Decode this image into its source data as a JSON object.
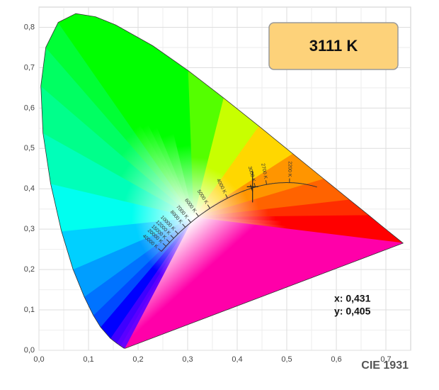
{
  "chart_data": {
    "type": "chromaticity",
    "title": "CIE 1931",
    "xlim": [
      0,
      0.75
    ],
    "ylim": [
      0,
      0.85
    ],
    "xticks": [
      {
        "value": 0,
        "label": "0,0"
      },
      {
        "value": 0.1,
        "label": "0,1"
      },
      {
        "value": 0.2,
        "label": "0,2"
      },
      {
        "value": 0.3,
        "label": "0,3"
      },
      {
        "value": 0.4,
        "label": "0,4"
      },
      {
        "value": 0.5,
        "label": "0,5"
      },
      {
        "value": 0.6,
        "label": "0,6"
      },
      {
        "value": 0.7,
        "label": "0,7"
      }
    ],
    "yticks": [
      {
        "value": 0,
        "label": "0,0"
      },
      {
        "value": 0.1,
        "label": "0,1"
      },
      {
        "value": 0.2,
        "label": "0,2"
      },
      {
        "value": 0.3,
        "label": "0,3"
      },
      {
        "value": 0.4,
        "label": "0,4"
      },
      {
        "value": 0.5,
        "label": "0,5"
      },
      {
        "value": 0.6,
        "label": "0,6"
      },
      {
        "value": 0.7,
        "label": "0,7"
      },
      {
        "value": 0.8,
        "label": "0,8"
      }
    ],
    "grid": true,
    "cct": {
      "value": 3111,
      "label": "3111 K"
    },
    "point": {
      "x": 0.431,
      "y": 0.405,
      "x_label": "x: 0,431",
      "y_label": "y: 0,405"
    },
    "planckian_ticks": [
      {
        "value": 2200,
        "label": "2200 K"
      },
      {
        "value": 2700,
        "label": "2700 K"
      },
      {
        "value": 3000,
        "label": "3000 K"
      },
      {
        "value": 4000,
        "label": "4000 K"
      },
      {
        "value": 5000,
        "label": "5000 K"
      },
      {
        "value": 6000,
        "label": "6000 K"
      },
      {
        "value": 7000,
        "label": "7000 K"
      },
      {
        "value": 8000,
        "label": "8000 K"
      },
      {
        "value": 10000,
        "label": "10000 K"
      },
      {
        "value": 12000,
        "label": "12000 K"
      },
      {
        "value": 15000,
        "label": "15000 K"
      },
      {
        "value": 20000,
        "label": "20000 K"
      },
      {
        "value": 40000,
        "label": "40000 K"
      }
    ]
  }
}
